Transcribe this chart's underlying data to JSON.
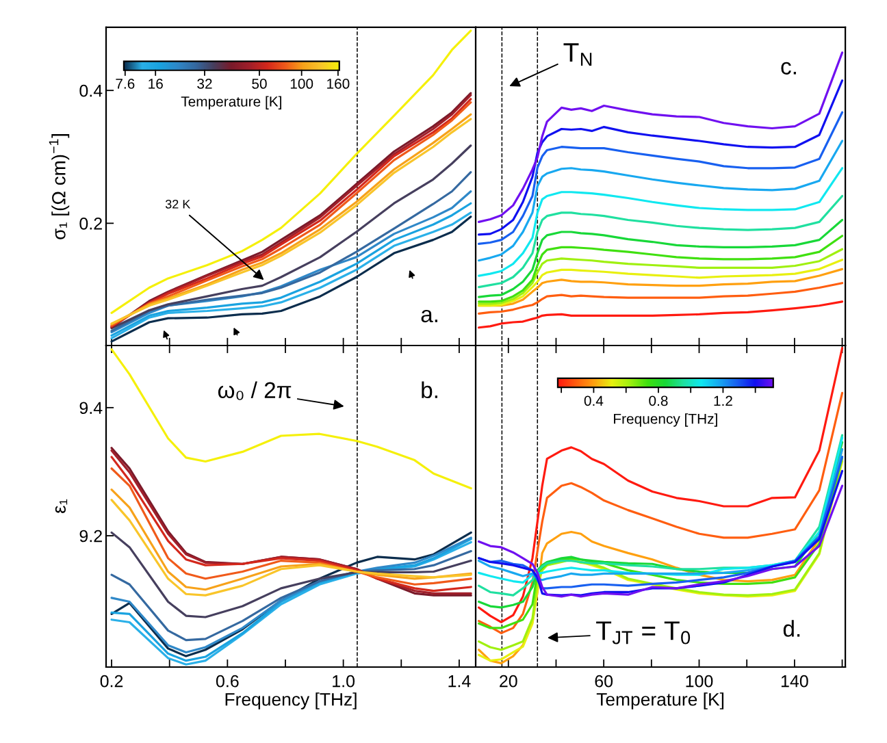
{
  "chart_data": [
    {
      "type": "line",
      "ylabel": "σ₁ [(Ω cm)$^{−1}$]",
      "x": [
        0.2,
        0.33,
        0.395,
        0.53,
        0.65,
        0.72,
        0.785,
        0.92,
        1.045,
        1.175,
        1.31,
        1.375,
        1.44
      ],
      "series": [
        {
          "color": "#0b2d4d",
          "values": [
            0.022,
            0.051,
            0.057,
            0.058,
            0.063,
            0.064,
            0.068,
            0.09,
            0.119,
            0.155,
            0.175,
            0.187,
            0.21
          ]
        },
        {
          "color": "#2ab0e8",
          "values": [
            0.027,
            0.058,
            0.065,
            0.068,
            0.072,
            0.075,
            0.081,
            0.103,
            0.13,
            0.166,
            0.187,
            0.198,
            0.216
          ]
        },
        {
          "color": "#1aa3e0",
          "values": [
            0.031,
            0.061,
            0.068,
            0.073,
            0.079,
            0.081,
            0.088,
            0.112,
            0.139,
            0.175,
            0.198,
            0.212,
            0.23
          ]
        },
        {
          "color": "#2f88c8",
          "values": [
            0.036,
            0.065,
            0.076,
            0.083,
            0.09,
            0.096,
            0.105,
            0.13,
            0.149,
            0.184,
            0.209,
            0.223,
            0.248
          ]
        },
        {
          "color": "#3569a0",
          "values": [
            0.038,
            0.068,
            0.076,
            0.085,
            0.091,
            0.095,
            0.103,
            0.126,
            0.157,
            0.192,
            0.229,
            0.248,
            0.277
          ]
        },
        {
          "color": "#463f5e",
          "values": [
            0.042,
            0.069,
            0.078,
            0.09,
            0.101,
            0.106,
            0.119,
            0.149,
            0.187,
            0.23,
            0.266,
            0.29,
            0.317
          ]
        },
        {
          "color": "#7a1a2a",
          "values": [
            0.043,
            0.083,
            0.097,
            0.122,
            0.144,
            0.157,
            0.175,
            0.212,
            0.259,
            0.308,
            0.346,
            0.367,
            0.396
          ]
        },
        {
          "color": "#a01f2a",
          "values": [
            0.044,
            0.081,
            0.096,
            0.121,
            0.142,
            0.153,
            0.171,
            0.209,
            0.256,
            0.304,
            0.342,
            0.364,
            0.393
          ]
        },
        {
          "color": "#d4281c",
          "values": [
            0.045,
            0.08,
            0.094,
            0.117,
            0.139,
            0.15,
            0.168,
            0.204,
            0.25,
            0.301,
            0.337,
            0.358,
            0.387
          ]
        },
        {
          "color": "#f05a1a",
          "values": [
            0.046,
            0.079,
            0.09,
            0.114,
            0.135,
            0.146,
            0.162,
            0.198,
            0.245,
            0.295,
            0.333,
            0.355,
            0.382
          ]
        },
        {
          "color": "#f7a21a",
          "values": [
            0.048,
            0.078,
            0.087,
            0.108,
            0.13,
            0.141,
            0.155,
            0.191,
            0.232,
            0.281,
            0.321,
            0.342,
            0.364
          ]
        },
        {
          "color": "#f9c52a",
          "values": [
            0.049,
            0.076,
            0.085,
            0.106,
            0.126,
            0.137,
            0.151,
            0.186,
            0.227,
            0.276,
            0.315,
            0.337,
            0.357
          ]
        },
        {
          "color": "#f5f00a",
          "values": [
            0.065,
            0.103,
            0.117,
            0.137,
            0.158,
            0.175,
            0.193,
            0.245,
            0.304,
            0.362,
            0.423,
            0.461,
            0.49
          ]
        }
      ],
      "xlim": [
        0.181,
        1.457
      ],
      "ylim": [
        0.016,
        0.495
      ],
      "xticks": [
        0.2,
        {
          "value": 0.4,
          "label": null
        },
        0.6,
        {
          "value": 0.8,
          "label": null
        },
        1.0,
        {
          "value": 1.2,
          "label": null
        },
        1.4
      ],
      "yticks": [
        0.2,
        0.4
      ],
      "tick_labels": "y",
      "ref_lines": [
        {
          "axis": "x",
          "value": 1.048,
          "label": null,
          "color": "#000000",
          "line_style": "dashed"
        }
      ],
      "clabel": "Temperature [K]",
      "annotations": [
        "32 K",
        "a.",
        "7.6",
        "16",
        "32",
        "50",
        "100",
        "160"
      ]
    },
    {
      "type": "line",
      "x": [
        7.6,
        12.4,
        17.0,
        22.0,
        26.1,
        30.1,
        32.2,
        34.2,
        36.2,
        42.3,
        46.4,
        50.4,
        55.0,
        60.1,
        70.2,
        80.4,
        90.5,
        100.1,
        110.3,
        120.4,
        130.6,
        140.2,
        150.4,
        160.0
      ],
      "series": [
        {
          "color": "#ff1a10",
          "values": [
            0.043,
            0.045,
            0.049,
            0.051,
            0.052,
            0.056,
            0.058,
            0.061,
            0.062,
            0.063,
            0.061,
            0.061,
            0.061,
            0.061,
            0.061,
            0.061,
            0.062,
            0.063,
            0.065,
            0.066,
            0.069,
            0.072,
            0.076,
            0.082
          ]
        },
        {
          "color": "#ff5e10",
          "values": [
            0.064,
            0.066,
            0.067,
            0.07,
            0.074,
            0.077,
            0.081,
            0.086,
            0.09,
            0.092,
            0.09,
            0.091,
            0.09,
            0.089,
            0.088,
            0.088,
            0.088,
            0.088,
            0.09,
            0.091,
            0.094,
            0.097,
            0.103,
            0.11
          ]
        },
        {
          "color": "#ffa010",
          "values": [
            0.076,
            0.076,
            0.076,
            0.079,
            0.085,
            0.097,
            0.103,
            0.11,
            0.112,
            0.115,
            0.113,
            0.112,
            0.112,
            0.111,
            0.108,
            0.107,
            0.106,
            0.106,
            0.108,
            0.109,
            0.112,
            0.113,
            0.121,
            0.131
          ]
        },
        {
          "color": "#e8f010",
          "values": [
            0.076,
            0.076,
            0.077,
            0.083,
            0.09,
            0.104,
            0.112,
            0.122,
            0.126,
            0.13,
            0.13,
            0.129,
            0.128,
            0.127,
            0.124,
            0.122,
            0.12,
            0.118,
            0.12,
            0.121,
            0.122,
            0.124,
            0.131,
            0.145
          ]
        },
        {
          "color": "#a0f010",
          "values": [
            0.079,
            0.079,
            0.08,
            0.086,
            0.095,
            0.11,
            0.126,
            0.139,
            0.144,
            0.147,
            0.146,
            0.145,
            0.144,
            0.142,
            0.139,
            0.137,
            0.135,
            0.133,
            0.133,
            0.133,
            0.133,
            0.136,
            0.143,
            0.161
          ]
        },
        {
          "color": "#40e010",
          "values": [
            0.082,
            0.082,
            0.083,
            0.09,
            0.099,
            0.115,
            0.137,
            0.153,
            0.16,
            0.164,
            0.164,
            0.163,
            0.162,
            0.16,
            0.157,
            0.153,
            0.149,
            0.147,
            0.146,
            0.146,
            0.147,
            0.149,
            0.157,
            0.181
          ]
        },
        {
          "color": "#18d838",
          "values": [
            0.089,
            0.091,
            0.092,
            0.101,
            0.112,
            0.13,
            0.155,
            0.175,
            0.182,
            0.187,
            0.187,
            0.185,
            0.184,
            0.182,
            0.176,
            0.172,
            0.167,
            0.165,
            0.164,
            0.164,
            0.165,
            0.167,
            0.175,
            0.205
          ]
        },
        {
          "color": "#20e0a0",
          "values": [
            0.104,
            0.107,
            0.11,
            0.119,
            0.133,
            0.155,
            0.187,
            0.205,
            0.211,
            0.216,
            0.216,
            0.214,
            0.213,
            0.211,
            0.205,
            0.201,
            0.196,
            0.193,
            0.191,
            0.19,
            0.191,
            0.193,
            0.202,
            0.241
          ]
        },
        {
          "color": "#10e8f0",
          "values": [
            0.121,
            0.124,
            0.128,
            0.139,
            0.155,
            0.178,
            0.216,
            0.236,
            0.241,
            0.247,
            0.247,
            0.246,
            0.245,
            0.243,
            0.238,
            0.232,
            0.227,
            0.223,
            0.221,
            0.22,
            0.22,
            0.221,
            0.232,
            0.283
          ]
        },
        {
          "color": "#18a8f0",
          "values": [
            0.144,
            0.148,
            0.153,
            0.166,
            0.187,
            0.216,
            0.256,
            0.27,
            0.275,
            0.282,
            0.283,
            0.281,
            0.28,
            0.278,
            0.272,
            0.266,
            0.261,
            0.257,
            0.253,
            0.251,
            0.25,
            0.252,
            0.264,
            0.324
          ]
        },
        {
          "color": "#1860f0",
          "values": [
            0.169,
            0.171,
            0.175,
            0.187,
            0.211,
            0.241,
            0.284,
            0.301,
            0.31,
            0.315,
            0.314,
            0.313,
            0.313,
            0.313,
            0.307,
            0.302,
            0.297,
            0.293,
            0.286,
            0.283,
            0.283,
            0.284,
            0.297,
            0.367
          ]
        },
        {
          "color": "#1010f0",
          "values": [
            0.183,
            0.184,
            0.191,
            0.205,
            0.232,
            0.27,
            0.306,
            0.322,
            0.331,
            0.342,
            0.341,
            0.342,
            0.339,
            0.345,
            0.337,
            0.332,
            0.328,
            0.324,
            0.319,
            0.315,
            0.314,
            0.315,
            0.333,
            0.415
          ]
        },
        {
          "color": "#7010f0",
          "values": [
            0.202,
            0.206,
            0.212,
            0.227,
            0.252,
            0.281,
            0.299,
            0.331,
            0.353,
            0.374,
            0.371,
            0.373,
            0.369,
            0.377,
            0.37,
            0.364,
            0.361,
            0.36,
            0.351,
            0.346,
            0.343,
            0.346,
            0.365,
            0.457
          ]
        }
      ],
      "xlim": [
        6.3,
        161.3
      ],
      "ylim": [
        0.016,
        0.495
      ],
      "xticks": [
        20,
        {
          "value": 40,
          "label": null
        },
        60,
        {
          "value": 80,
          "label": null
        },
        100,
        {
          "value": 120,
          "label": null
        },
        140,
        {
          "value": 160,
          "label": null
        }
      ],
      "tick_labels": false,
      "ref_lines": [
        {
          "axis": "x",
          "value": 17.3,
          "label": null,
          "color": "#000000",
          "line_style": "dashed"
        },
        {
          "axis": "x",
          "value": 32.2,
          "label": null,
          "color": "#000000",
          "line_style": "dashed"
        }
      ],
      "annotations": [
        "T$_{N}$",
        "c."
      ]
    },
    {
      "type": "line",
      "ylabel": "ε₁",
      "xlabel": "Frequency [THz]",
      "x": [
        0.2,
        0.262,
        0.395,
        0.457,
        0.524,
        0.652,
        0.785,
        0.918,
        1.046,
        1.117,
        1.246,
        1.312,
        1.441
      ],
      "series": [
        {
          "color": "#0b2d4d",
          "values": [
            9.078,
            9.095,
            9.024,
            9.012,
            9.022,
            9.054,
            9.099,
            9.133,
            9.158,
            9.167,
            9.163,
            9.171,
            9.205
          ]
        },
        {
          "color": "#2ab0e8",
          "values": [
            9.069,
            9.065,
            9.009,
            8.999,
            9.005,
            9.046,
            9.093,
            9.124,
            9.141,
            9.146,
            9.152,
            9.163,
            9.19
          ]
        },
        {
          "color": "#1aa3e0",
          "values": [
            9.08,
            9.078,
            9.016,
            9.005,
            9.011,
            9.048,
            9.097,
            9.127,
            9.143,
            9.148,
            9.154,
            9.165,
            9.195
          ]
        },
        {
          "color": "#2f88c8",
          "values": [
            9.103,
            9.097,
            9.029,
            9.018,
            9.026,
            9.056,
            9.099,
            9.129,
            9.144,
            9.15,
            9.158,
            9.169,
            9.197
          ]
        },
        {
          "color": "#3569a0",
          "values": [
            9.139,
            9.124,
            9.052,
            9.037,
            9.039,
            9.067,
            9.103,
            9.129,
            9.144,
            9.146,
            9.148,
            9.154,
            9.176
          ]
        },
        {
          "color": "#463f5e",
          "values": [
            9.205,
            9.182,
            9.097,
            9.075,
            9.073,
            9.09,
            9.118,
            9.133,
            9.143,
            9.143,
            9.143,
            9.144,
            9.161
          ]
        },
        {
          "color": "#7a1a2a",
          "values": [
            9.337,
            9.305,
            9.207,
            9.173,
            9.159,
            9.156,
            9.167,
            9.163,
            9.148,
            9.133,
            9.11,
            9.107,
            9.107
          ]
        },
        {
          "color": "#a01f2a",
          "values": [
            9.333,
            9.299,
            9.203,
            9.171,
            9.158,
            9.156,
            9.167,
            9.163,
            9.148,
            9.133,
            9.114,
            9.11,
            9.11
          ]
        },
        {
          "color": "#d4281c",
          "values": [
            9.323,
            9.286,
            9.192,
            9.163,
            9.154,
            9.156,
            9.165,
            9.161,
            9.146,
            9.133,
            9.118,
            9.114,
            9.12
          ]
        },
        {
          "color": "#f05a1a",
          "values": [
            9.305,
            9.278,
            9.165,
            9.141,
            9.133,
            9.144,
            9.161,
            9.158,
            9.144,
            9.135,
            9.124,
            9.126,
            9.133
          ]
        },
        {
          "color": "#f7a21a",
          "values": [
            9.272,
            9.244,
            9.144,
            9.12,
            9.116,
            9.133,
            9.152,
            9.156,
            9.144,
            9.139,
            9.133,
            9.135,
            9.141
          ]
        },
        {
          "color": "#f9c52a",
          "values": [
            9.256,
            9.224,
            9.133,
            9.109,
            9.107,
            9.122,
            9.148,
            9.154,
            9.144,
            9.141,
            9.137,
            9.135,
            9.139
          ]
        },
        {
          "color": "#f5f00a",
          "values": [
            9.491,
            9.452,
            9.352,
            9.322,
            9.316,
            9.331,
            9.356,
            9.359,
            9.348,
            9.339,
            9.318,
            9.297,
            9.274
          ]
        }
      ],
      "xlim": [
        0.181,
        1.457
      ],
      "ylim": [
        8.995,
        9.497
      ],
      "xticks": [
        0.2,
        {
          "value": 0.4,
          "label": null
        },
        0.6,
        {
          "value": 0.8,
          "label": null
        },
        {
          "value": 1.0,
          "label": "1.0"
        },
        {
          "value": 1.2,
          "label": null
        },
        1.4
      ],
      "yticks": [
        9.2,
        9.4
      ],
      "ref_lines": [
        {
          "axis": "x",
          "value": 1.048,
          "label": null,
          "color": "#000000",
          "line_style": "dashed"
        }
      ],
      "annotations": [
        "ω₀ / 2π",
        "b."
      ]
    },
    {
      "type": "line",
      "xlabel": "Temperature [K]",
      "x": [
        7.6,
        12.4,
        17.0,
        22.0,
        26.1,
        30.1,
        32.2,
        34.2,
        36.2,
        42.3,
        46.4,
        50.4,
        55.0,
        60.1,
        70.2,
        80.4,
        90.5,
        100.1,
        110.3,
        120.4,
        130.6,
        140.2,
        150.4,
        160.0
      ],
      "series": [
        {
          "color": "#ff1a10",
          "values": [
            9.088,
            9.075,
            9.065,
            9.076,
            9.105,
            9.165,
            9.222,
            9.278,
            9.32,
            9.333,
            9.338,
            9.332,
            9.32,
            9.312,
            9.286,
            9.269,
            9.259,
            9.254,
            9.246,
            9.246,
            9.259,
            9.26,
            9.333,
            9.493
          ]
        },
        {
          "color": "#ff5e10",
          "values": [
            9.067,
            9.058,
            9.048,
            9.056,
            9.078,
            9.127,
            9.176,
            9.222,
            9.259,
            9.278,
            9.282,
            9.276,
            9.267,
            9.255,
            9.24,
            9.227,
            9.214,
            9.203,
            9.197,
            9.197,
            9.203,
            9.21,
            9.271,
            9.423
          ]
        },
        {
          "color": "#ffa010",
          "values": [
            9.022,
            9.005,
            9.001,
            9.012,
            9.029,
            9.065,
            9.112,
            9.173,
            9.188,
            9.203,
            9.206,
            9.203,
            9.191,
            9.184,
            9.173,
            9.163,
            9.15,
            9.139,
            9.131,
            9.129,
            9.131,
            9.139,
            9.195,
            9.335
          ]
        },
        {
          "color": "#e8f010",
          "values": [
            9.014,
            9.005,
            9.007,
            9.018,
            9.027,
            9.063,
            9.116,
            9.148,
            9.154,
            9.163,
            9.165,
            9.159,
            9.154,
            9.148,
            9.131,
            9.124,
            9.116,
            9.11,
            9.107,
            9.105,
            9.107,
            9.114,
            9.171,
            9.316
          ]
        },
        {
          "color": "#a0f010",
          "values": [
            9.035,
            9.026,
            9.022,
            9.029,
            9.035,
            9.071,
            9.127,
            9.146,
            9.154,
            9.159,
            9.163,
            9.158,
            9.156,
            9.15,
            9.133,
            9.125,
            9.118,
            9.112,
            9.108,
            9.107,
            9.109,
            9.116,
            9.173,
            9.32
          ]
        },
        {
          "color": "#40e010",
          "values": [
            9.063,
            9.056,
            9.056,
            9.063,
            9.069,
            9.093,
            9.142,
            9.15,
            9.156,
            9.163,
            9.165,
            9.163,
            9.159,
            9.157,
            9.146,
            9.139,
            9.131,
            9.127,
            9.125,
            9.125,
            9.127,
            9.135,
            9.188,
            9.323
          ]
        },
        {
          "color": "#18d838",
          "values": [
            9.097,
            9.09,
            9.088,
            9.092,
            9.097,
            9.12,
            9.146,
            9.154,
            9.159,
            9.165,
            9.167,
            9.163,
            9.161,
            9.159,
            9.157,
            9.156,
            9.148,
            9.144,
            9.142,
            9.142,
            9.148,
            9.152,
            9.206,
            9.346
          ]
        },
        {
          "color": "#20e0a0",
          "values": [
            9.122,
            9.112,
            9.11,
            9.107,
            9.118,
            9.131,
            9.144,
            9.152,
            9.157,
            9.161,
            9.161,
            9.159,
            9.157,
            9.157,
            9.154,
            9.152,
            9.148,
            9.148,
            9.15,
            9.15,
            9.154,
            9.161,
            9.214,
            9.357
          ]
        },
        {
          "color": "#10e8f0",
          "values": [
            9.142,
            9.137,
            9.133,
            9.129,
            9.127,
            9.139,
            9.141,
            9.142,
            9.144,
            9.148,
            9.15,
            9.148,
            9.146,
            9.146,
            9.142,
            9.141,
            9.139,
            9.139,
            9.148,
            9.15,
            9.154,
            9.161,
            9.206,
            9.353
          ]
        },
        {
          "color": "#18a8f0",
          "values": [
            9.161,
            9.152,
            9.148,
            9.142,
            9.137,
            9.141,
            9.133,
            9.131,
            9.133,
            9.137,
            9.141,
            9.139,
            9.139,
            9.141,
            9.141,
            9.141,
            9.141,
            9.141,
            9.142,
            9.146,
            9.152,
            9.159,
            9.199,
            9.335
          ]
        },
        {
          "color": "#1860f0",
          "values": [
            9.165,
            9.159,
            9.161,
            9.156,
            9.154,
            9.146,
            9.131,
            9.118,
            9.118,
            9.12,
            9.12,
            9.122,
            9.124,
            9.124,
            9.122,
            9.125,
            9.127,
            9.131,
            9.135,
            9.142,
            9.152,
            9.161,
            9.199,
            9.323
          ]
        },
        {
          "color": "#1010f0",
          "values": [
            9.165,
            9.159,
            9.157,
            9.154,
            9.15,
            9.146,
            9.135,
            9.11,
            9.108,
            9.107,
            9.108,
            9.107,
            9.11,
            9.112,
            9.112,
            9.118,
            9.118,
            9.122,
            9.127,
            9.139,
            9.152,
            9.159,
            9.195,
            9.301
          ]
        },
        {
          "color": "#7010f0",
          "values": [
            9.191,
            9.184,
            9.182,
            9.174,
            9.165,
            9.156,
            9.142,
            9.12,
            9.108,
            9.105,
            9.108,
            9.105,
            9.108,
            9.11,
            9.108,
            9.12,
            9.118,
            9.124,
            9.129,
            9.137,
            9.148,
            9.152,
            9.184,
            9.278
          ]
        }
      ],
      "xlim": [
        6.3,
        161.3
      ],
      "ylim": [
        8.995,
        9.497
      ],
      "xticks": [
        20,
        {
          "value": 40,
          "label": null
        },
        60,
        {
          "value": 80,
          "label": null
        },
        100,
        {
          "value": 120,
          "label": null
        },
        140,
        {
          "value": 160,
          "label": null
        }
      ],
      "tick_labels": "x",
      "ref_lines": [
        {
          "axis": "x",
          "value": 17.3,
          "label": null,
          "color": "#000000",
          "line_style": "dashed"
        },
        {
          "axis": "x",
          "value": 32.2,
          "label": null,
          "color": "#000000",
          "line_style": "dashed"
        }
      ],
      "clabel": "Frequency [THz]",
      "annotations": [
        "T$_{JT}$ = T$_{0}$",
        "d.",
        "0.4",
        "0.8",
        "1.2"
      ]
    }
  ]
}
